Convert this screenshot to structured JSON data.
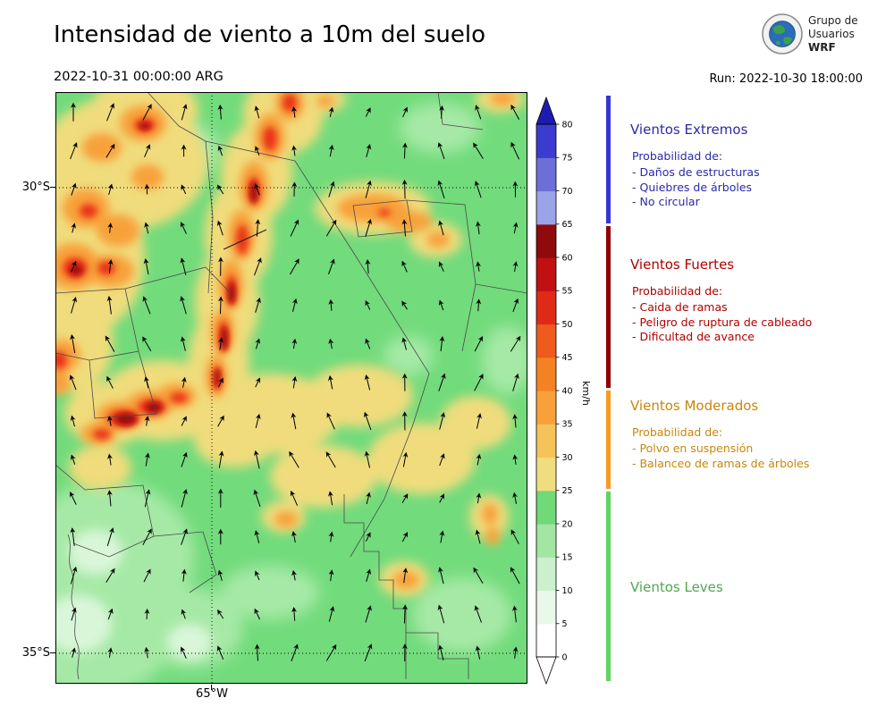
{
  "header": {
    "title": "Intensidad de viento a 10m del suelo",
    "valid_time": "2022-10-31 00:00:00 ARG",
    "run_label": "Run: 2022-10-30 18:00:00",
    "logo": {
      "line1": "Grupo de",
      "line2": "Usuarios",
      "line3": "WRF"
    }
  },
  "map": {
    "lat_labels": [
      "30°S",
      "35°S"
    ],
    "lon_label": "65°W"
  },
  "colorbar": {
    "unit": "km/h",
    "ticks": [
      0,
      5,
      10,
      15,
      20,
      25,
      30,
      35,
      40,
      45,
      50,
      55,
      60,
      65,
      70,
      75,
      80
    ],
    "colors": [
      "#ffffff",
      "#e9f9e9",
      "#ccf0cc",
      "#a3e6a3",
      "#70d978",
      "#f0dd7e",
      "#f6c35a",
      "#f8a13b",
      "#f58222",
      "#ef5a1d",
      "#e02a18",
      "#c01012",
      "#8e0a0d",
      "#9ba4e8",
      "#6b6fd8",
      "#3b3bcf"
    ],
    "over_color": "#1c1cb0",
    "under_color": "#ffffff"
  },
  "legend": {
    "sections": [
      {
        "title": "Vientos Extremos",
        "subtitle": "Probabilidad de:",
        "items": [
          "- Daños de estructuras",
          "- Quiebres de árboles",
          "- No circular"
        ],
        "text_color": "#2a2aaa",
        "bar_color": "#3535d6"
      },
      {
        "title": "Vientos Fuertes",
        "subtitle": "Probabilidad de:",
        "items": [
          "- Caida de ramas",
          "- Peligro de ruptura de cableado",
          "- Dificultad de avance"
        ],
        "text_color": "#b00000",
        "bar_color": "#8f0000"
      },
      {
        "title": "Vientos Moderados",
        "subtitle": "Probabilidad de:",
        "items": [
          "- Polvo en suspensión",
          "- Balanceo de ramas de árboles"
        ],
        "text_color": "#c8860b",
        "bar_color": "#f59c20"
      },
      {
        "title": "Vientos Leves",
        "subtitle": "",
        "items": [],
        "text_color": "#4fa84f",
        "bar_color": "#5fd35f"
      }
    ]
  }
}
